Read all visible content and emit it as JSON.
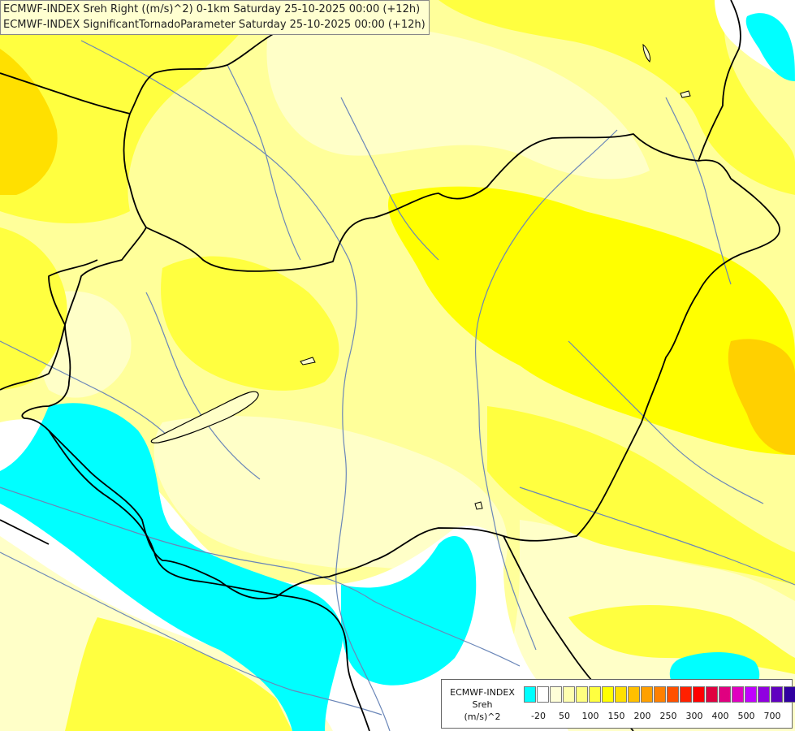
{
  "header": {
    "line1": "ECMWF-INDEX Sreh Right ((m/s)^2) 0-1km Saturday 25-10-2025 00:00 (+12h)",
    "line2": "ECMWF-INDEX SignificantTornadoParameter Saturday 25-10-2025 00:00 (+12h)"
  },
  "legend": {
    "title1": "ECMWF-INDEX",
    "title2": "Sreh",
    "title3": "(m/s)^2",
    "colors": [
      "#00ffff",
      "#ffffff",
      "#ffffd8",
      "#ffffb0",
      "#ffff80",
      "#ffff40",
      "#ffff00",
      "#ffe000",
      "#ffc000",
      "#ffa000",
      "#ff8000",
      "#ff5000",
      "#ff2000",
      "#ff0000",
      "#e00040",
      "#e00080",
      "#e000c0",
      "#c000ff",
      "#9000e0",
      "#6000c0",
      "#3000a0",
      "#000080"
    ],
    "ticks": [
      "-20",
      "50",
      "100",
      "150",
      "200",
      "250",
      "300",
      "400",
      "500",
      "700"
    ]
  },
  "map_colors": {
    "base": "#ffff9a",
    "cyan": "#00ffff",
    "white": "#ffffff",
    "pale": "#ffffc8",
    "lightyellow": "#ffff70",
    "yellow": "#ffff00",
    "gold": "#ffe000",
    "orange": "#ffc800",
    "border": "#000000",
    "river": "#6a86b8"
  }
}
